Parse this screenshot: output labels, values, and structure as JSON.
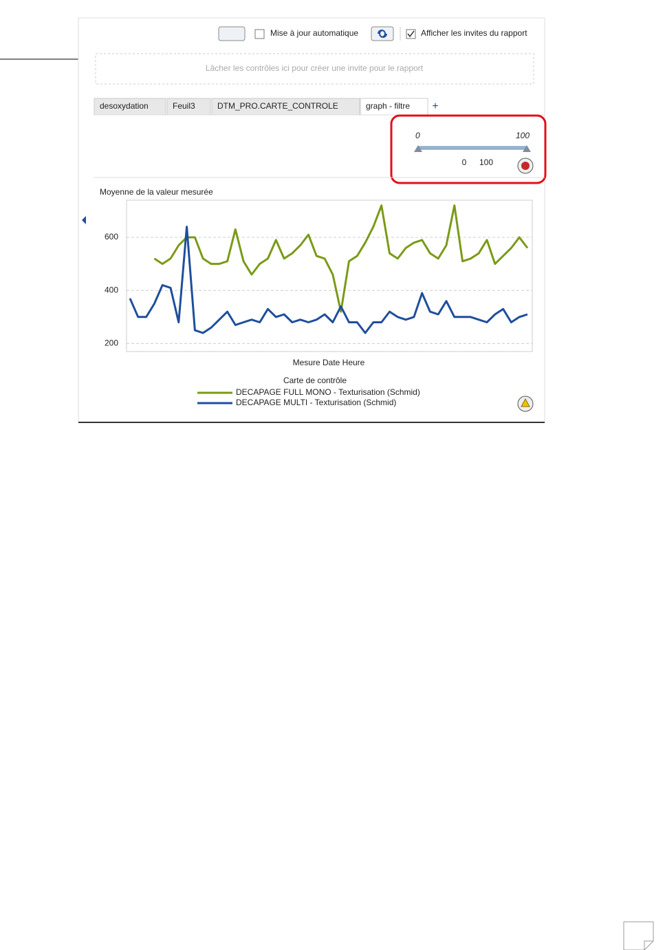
{
  "toolbar": {
    "auto_update": "Mise à jour automatique",
    "show_prompts": "Afficher les invites du rapport"
  },
  "drop_zone": "Lâcher les contrôles ici pour créer une invite pour le rapport",
  "tabs": [
    "desoxydation",
    "Feuil3",
    "DTM_PRO.CARTE_CONTROLE",
    "graph - filtre"
  ],
  "slider": {
    "min_label": "0",
    "max_label": "100",
    "low": "0",
    "high": "100"
  },
  "chart_data": {
    "type": "line",
    "ylabel": "Moyenne de la valeur mesurée",
    "xlabel": "Mesure Date Heure",
    "legend_title": "Carte de contrôle",
    "categories": [
      null,
      null,
      null,
      null,
      null,
      null,
      null,
      null,
      null,
      null,
      null,
      null,
      null,
      null,
      null,
      null,
      null,
      null,
      null,
      null,
      null,
      null,
      null,
      null,
      null,
      null,
      null,
      null,
      null,
      null,
      null,
      null,
      null,
      null,
      null,
      null,
      null,
      null,
      null,
      null,
      null,
      null,
      null,
      null,
      null,
      null,
      null,
      null,
      null,
      null
    ],
    "series": [
      {
        "name": "DECAPAGE FULL MONO - Texturisation (Schmid)",
        "color": "#7a9a17",
        "values": [
          null,
          null,
          null,
          520,
          500,
          520,
          570,
          600,
          600,
          520,
          500,
          500,
          510,
          630,
          510,
          460,
          500,
          520,
          590,
          520,
          540,
          570,
          610,
          530,
          520,
          460,
          320,
          510,
          530,
          580,
          640,
          720,
          540,
          520,
          560,
          580,
          590,
          540,
          520,
          570,
          720,
          510,
          520,
          540,
          590,
          500,
          530,
          560,
          600,
          560
        ]
      },
      {
        "name": "DECAPAGE MULTI - Texturisation (Schmid)",
        "color": "#1f4e9c",
        "values": [
          370,
          300,
          300,
          350,
          420,
          410,
          280,
          640,
          250,
          240,
          260,
          290,
          320,
          270,
          280,
          290,
          280,
          330,
          300,
          310,
          280,
          290,
          280,
          290,
          310,
          280,
          340,
          280,
          280,
          240,
          280,
          280,
          320,
          300,
          290,
          300,
          390,
          320,
          310,
          360,
          300,
          300,
          300,
          290,
          280,
          310,
          330,
          280,
          300,
          310
        ]
      }
    ],
    "ylim": [
      170,
      740
    ],
    "yticks": [
      200,
      400,
      600
    ],
    "grid": true
  }
}
